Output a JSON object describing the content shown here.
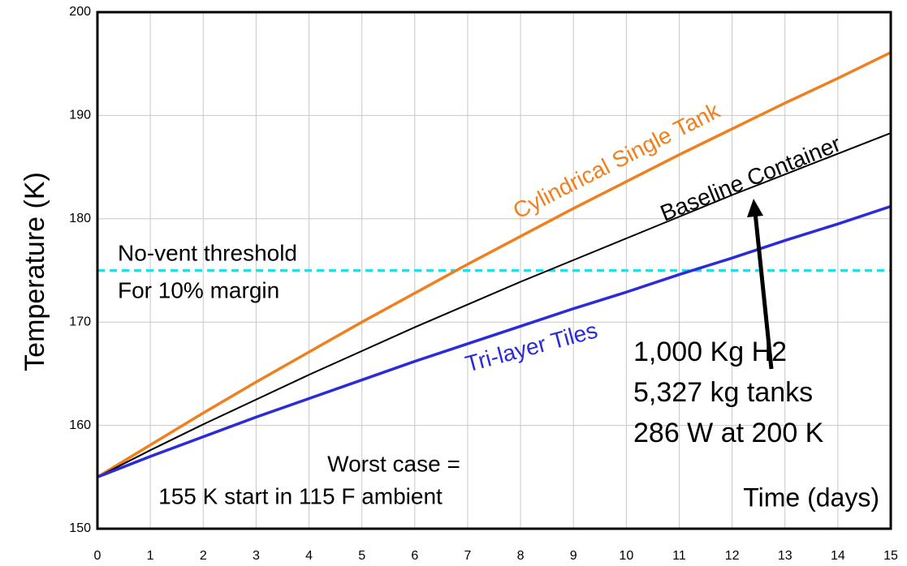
{
  "chart_data": {
    "type": "line",
    "ylabel": "Temperature (K)",
    "xlabel": "Time (days)",
    "x": [
      0,
      1,
      2,
      3,
      4,
      5,
      6,
      7,
      8,
      9,
      10,
      11,
      12,
      13,
      14,
      15
    ],
    "series": [
      {
        "name": "Cylindrical Single Tank",
        "color": "#f07f1e",
        "values": [
          155,
          158.1,
          161.2,
          164.2,
          167.1,
          170,
          172.8,
          175.6,
          178.3,
          181,
          183.6,
          186.2,
          188.7,
          191.2,
          193.6,
          196.1
        ]
      },
      {
        "name": "Baseline Container",
        "color": "#000000",
        "values": [
          155,
          157.6,
          160.1,
          162.5,
          164.9,
          167.2,
          169.5,
          171.7,
          173.9,
          176,
          178.1,
          180.2,
          182.3,
          184.3,
          186.3,
          188.3
        ]
      },
      {
        "name": "Tri-layer Tiles",
        "color": "#2b2bd8",
        "values": [
          155,
          157,
          158.9,
          160.8,
          162.6,
          164.4,
          166.2,
          167.9,
          169.6,
          171.3,
          172.9,
          174.6,
          176.2,
          177.9,
          179.5,
          181.2
        ]
      }
    ],
    "threshold": {
      "value": 175,
      "color": "#22dde8"
    },
    "annotations": [
      "No-vent threshold",
      "For 10% margin",
      "1,000 Kg H2",
      "5,327 kg tanks",
      "286 W at 200 K",
      "Worst case =",
      "155 K start in 115 F ambient"
    ],
    "xlim": [
      0,
      15
    ],
    "ylim": [
      150,
      200
    ],
    "xticks": [
      0,
      1,
      2,
      3,
      4,
      5,
      6,
      7,
      8,
      9,
      10,
      11,
      12,
      13,
      14,
      15
    ],
    "yticks": [
      150,
      160,
      170,
      180,
      190,
      200
    ],
    "grid": true
  }
}
